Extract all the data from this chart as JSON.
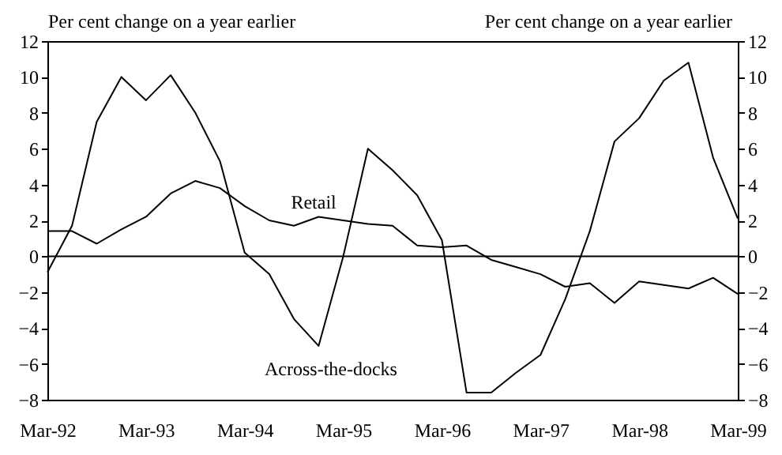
{
  "chart_data": {
    "type": "line",
    "ylabel": "Per cent change on a year earlier",
    "y2label": "Per cent change on a year earlier",
    "categories": [
      "Mar-92",
      null,
      null,
      null,
      "Mar-93",
      null,
      null,
      null,
      "Mar-94",
      null,
      null,
      null,
      "Mar-95",
      null,
      null,
      null,
      "Mar-96",
      null,
      null,
      null,
      "Mar-97",
      null,
      null,
      null,
      "Mar-98",
      null,
      null,
      null,
      "Mar-99"
    ],
    "series": [
      {
        "name": "Across-the-docks",
        "color": "#000000",
        "values": [
          -0.9,
          1.7,
          7.5,
          10.0,
          8.7,
          10.1,
          8.0,
          5.3,
          0.2,
          -1.0,
          -3.5,
          -5.0,
          0.0,
          6.0,
          4.8,
          3.4,
          0.9,
          -7.6,
          -7.6,
          -6.5,
          -5.5,
          -2.4,
          1.4,
          6.4,
          7.7,
          9.8,
          10.8,
          5.5,
          2.1
        ]
      },
      {
        "name": "Retail",
        "color": "#000000",
        "values": [
          1.4,
          1.4,
          0.7,
          1.5,
          2.2,
          3.5,
          4.2,
          3.8,
          2.8,
          2.0,
          1.7,
          2.2,
          2.0,
          1.8,
          1.7,
          0.6,
          0.5,
          0.6,
          -0.2,
          -0.6,
          -1.0,
          -1.7,
          -1.5,
          -2.6,
          -1.4,
          -1.6,
          -1.8,
          -1.2,
          -2.1
        ]
      }
    ],
    "ylim": [
      -8,
      12
    ],
    "yticks": [
      -8,
      -6,
      -4,
      -2,
      0,
      2,
      4,
      6,
      8,
      10,
      12
    ],
    "y2lim": [
      -8,
      12
    ],
    "y2ticks": [
      -8,
      -6,
      -4,
      -2,
      0,
      2,
      4,
      6,
      8,
      10,
      12
    ],
    "ref_lines": [
      {
        "axis": "y",
        "value": 0,
        "color": "#000000"
      }
    ],
    "grid": false,
    "legend": false,
    "marker": "none",
    "line_style": "solid"
  }
}
